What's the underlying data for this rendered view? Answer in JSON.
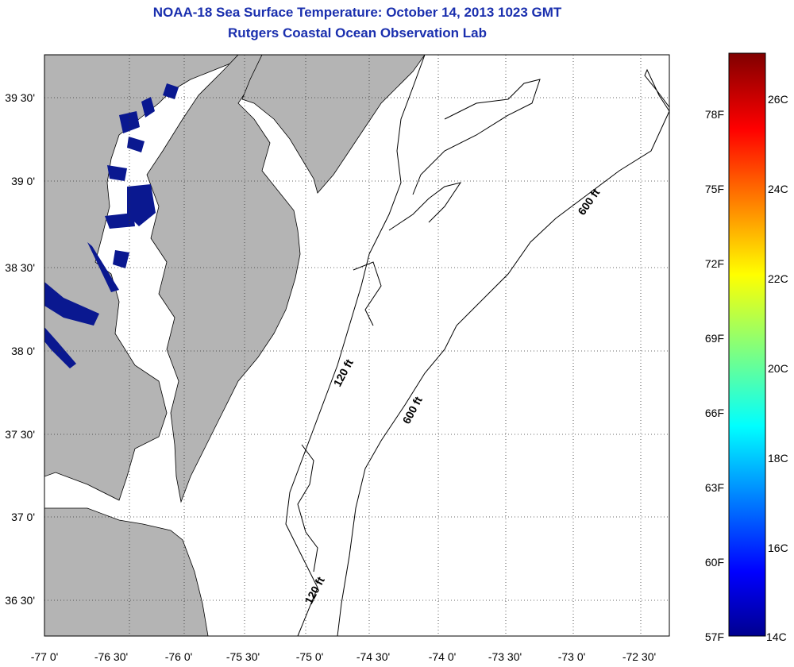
{
  "title": "NOAA-18 Sea Surface Temperature:  October 14, 2013 1023 GMT",
  "subtitle": "Rutgers Coastal Ocean Observation Lab",
  "map": {
    "lon_ticks": [
      "-77 0'",
      "-76 30'",
      "-76 0'",
      "-75 30'",
      "-75 0'",
      "-74 30'",
      "-74 0'",
      "-73 30'",
      "-73 0'",
      "-72 30'"
    ],
    "lat_ticks": [
      "39 30'",
      "39 0'",
      "38 30'",
      "38 0'",
      "37 30'",
      "37 0'",
      "36 30'"
    ],
    "contour_labels": [
      "120 ft",
      "600 ft",
      "600 ft",
      "120 ft"
    ],
    "colors": {
      "land": "#b4b4b4",
      "water": "#ffffff",
      "cold_sst": "#0a1890"
    }
  },
  "colorbar": {
    "fahrenheit_labels": [
      "78F",
      "75F",
      "72F",
      "69F",
      "66F",
      "63F",
      "60F",
      "57F"
    ],
    "celsius_labels": [
      "26C",
      "24C",
      "22C",
      "20C",
      "18C",
      "16C",
      "14C"
    ]
  }
}
